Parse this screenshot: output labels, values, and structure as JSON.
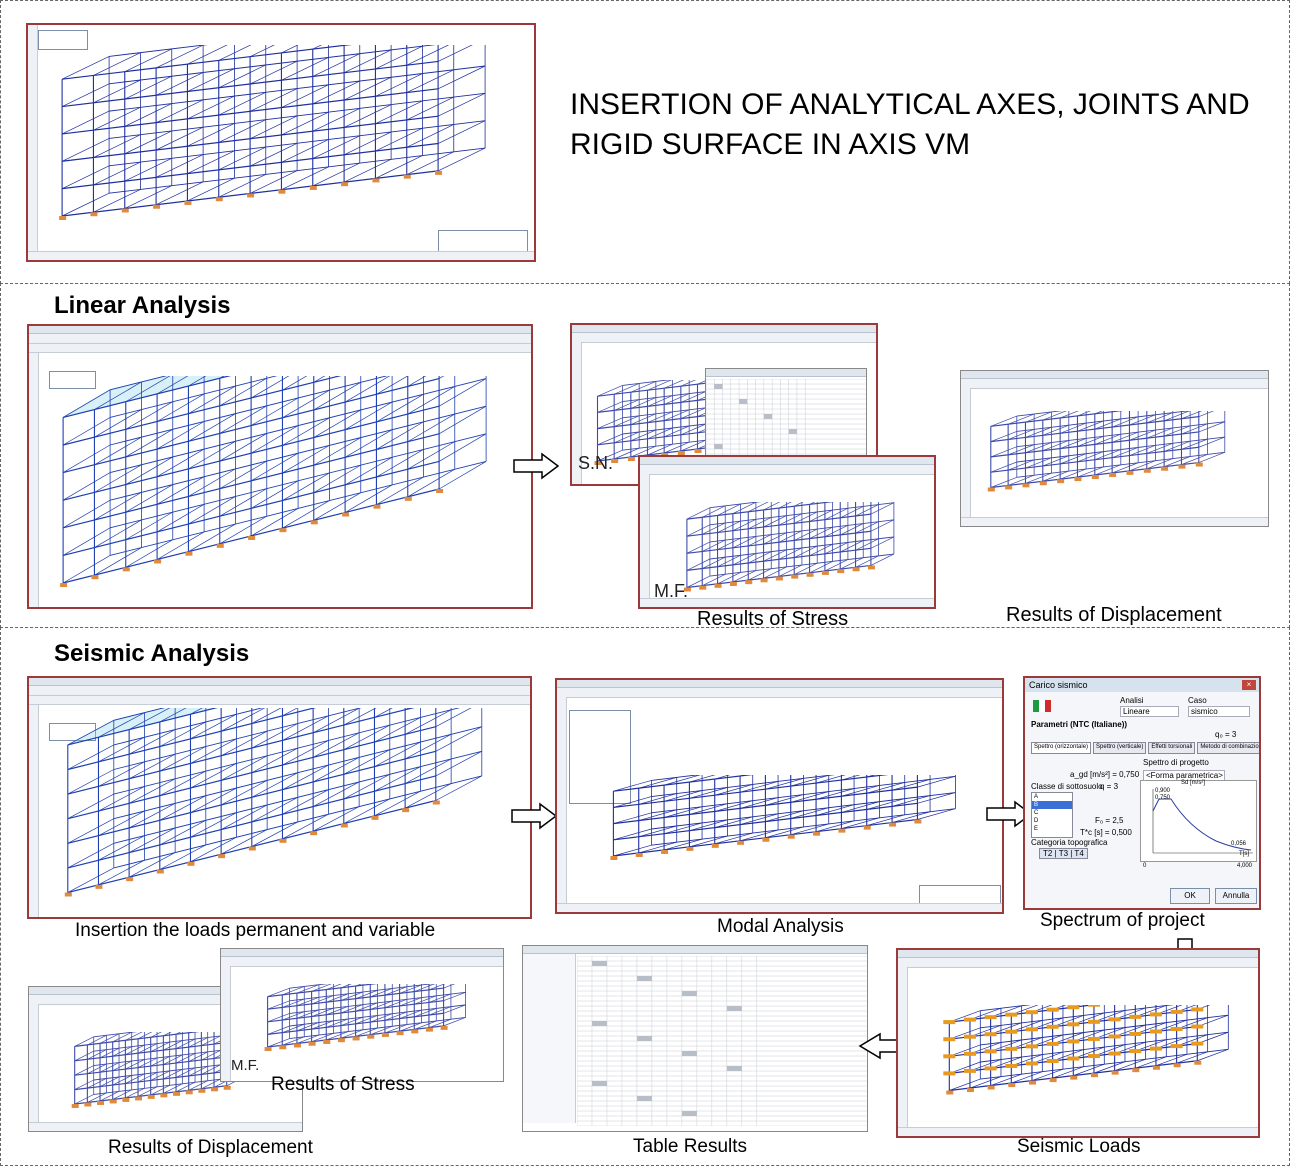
{
  "header": {
    "title": "INSERTION OF ANALYTICAL AXES, JOINTS AND RIGID SURFACE IN AXIS VM"
  },
  "linear": {
    "heading": "Linear Analysis",
    "stress_label": "Results of Stress",
    "displacement_label": "Results of Displacement",
    "tag_sn": "S.N.",
    "tag_mf": "M.F."
  },
  "seismic": {
    "heading": "Seismic Analysis",
    "loads_label": "Insertion the loads permanent and variable",
    "modal_label": "Modal Analysis",
    "spectrum_label": "Spectrum of project",
    "stress_label": "Results of Stress",
    "tag_mf": "M.F.",
    "displacement_label": "Results of Displacement",
    "table_label": "Table Results",
    "seismic_loads_label": "Seismic Loads"
  },
  "dialog": {
    "title": "Carico sismico",
    "analisi": "Analisi",
    "caso": "Caso",
    "lineare": "Lineare",
    "sismico": "sismico",
    "params": "Parametri (NTC (Italiane))",
    "q0": "q₀ = 3",
    "tab1": "Spettro (orizzontale)",
    "tab2": "Spettro (verticale)",
    "tab3": "Effetti torsionali",
    "tab4": "Metodo di combinazione",
    "spettro": "Spettro di progetto",
    "forma": "<Forma parametrica>",
    "ag": "a_gd [m/s²] = 0,750",
    "q": "q = 3",
    "classe": "Classe di sottosuolo",
    "fo": "F₀ = 2,5",
    "tc": "T*c [s] = 0,500",
    "categoria": "Categoria topografica",
    "cat_value": "T2 | T3 | T4",
    "sd": "Sd [m/s²]",
    "v900": "0,900",
    "v750": "0,750",
    "v056": "0,056",
    "ts": "T[s]",
    "x0": "0",
    "x4000": "4,000",
    "ok": "OK",
    "annulla": "Annulla",
    "classes": [
      "A",
      "B",
      "C",
      "D",
      "E"
    ]
  },
  "colors": {
    "frame_border": "#9b3a3a",
    "structure": "#1f2f9e",
    "supports": "#e08a3c",
    "seismic_orange": "#e89a1f"
  },
  "icons": [
    "arrow-right-icon",
    "arrow-down-icon",
    "arrow-left-icon",
    "italy-flag-icon"
  ]
}
